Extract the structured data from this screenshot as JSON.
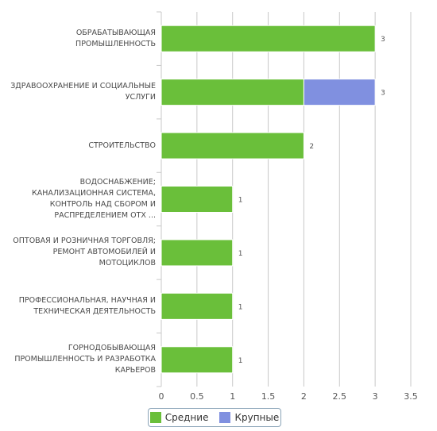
{
  "chart_data": {
    "type": "bar",
    "orientation": "horizontal",
    "stacked": true,
    "categories": [
      "ОБРАБАТЫВАЮЩАЯ ПРОМЫШЛЕННОСТЬ",
      "ЗДРАВООХРАНЕНИЕ И СОЦИАЛЬНЫЕ УСЛУГИ",
      "СТРОИТЕЛЬСТВО",
      "ВОДОСНАБЖЕНИЕ; КАНАЛИЗАЦИОННАЯ СИСТЕМА, КОНТРОЛЬ НАД СБОРОМ И РАСПРЕДЕЛЕНИЕМ ОТХ ...",
      "ОПТОВАЯ И РОЗНИЧНАЯ ТОРГОВЛЯ; РЕМОНТ АВТОМОБИЛЕЙ И МОТОЦИКЛОВ",
      "ПРОФЕССИОНАЛЬНАЯ, НАУЧНАЯ И ТЕХНИЧЕСКАЯ ДЕЯТЕЛЬНОСТЬ",
      "ГОРНОДОБЫВАЮЩАЯ ПРОМЫШЛЕННОСТЬ И РАЗРАБОТКА КАРЬЕРОВ"
    ],
    "series": [
      {
        "name": "Средние",
        "color": "#6abf3a",
        "values": [
          3,
          2,
          2,
          1,
          1,
          1,
          1
        ]
      },
      {
        "name": "Крупные",
        "color": "#8090e0",
        "values": [
          0,
          1,
          0,
          0,
          0,
          0,
          0
        ]
      }
    ],
    "totals": [
      "3",
      "3",
      "2",
      "1",
      "1",
      "1",
      "1"
    ],
    "xticks": [
      "0",
      "0.5",
      "1",
      "1.5",
      "2",
      "2.5",
      "3",
      "3.5"
    ],
    "xlim": [
      0,
      3.5
    ],
    "grid": true,
    "legend_position": "bottom"
  }
}
